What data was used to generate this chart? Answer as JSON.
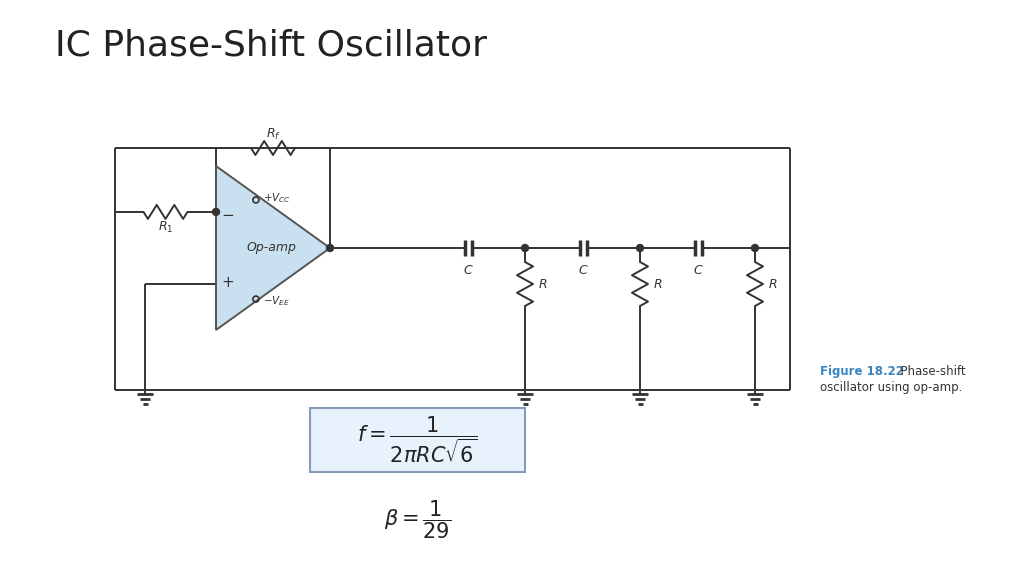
{
  "title": "IC Phase-Shift Oscillator",
  "title_fontsize": 26,
  "background_color": "#ffffff",
  "fig_caption_bold": "Figure 18.22",
  "fig_caption_color": "#3a85c0",
  "caption_rest": "  Phase-shift",
  "caption_line2": "oscillator using op-amp.",
  "opamp_fill": "#c8e0f0",
  "wire_color": "#000000",
  "box_color": "#8899aa",
  "formula_bg": "#e8f2fc",
  "formula_border": "#8899bb"
}
